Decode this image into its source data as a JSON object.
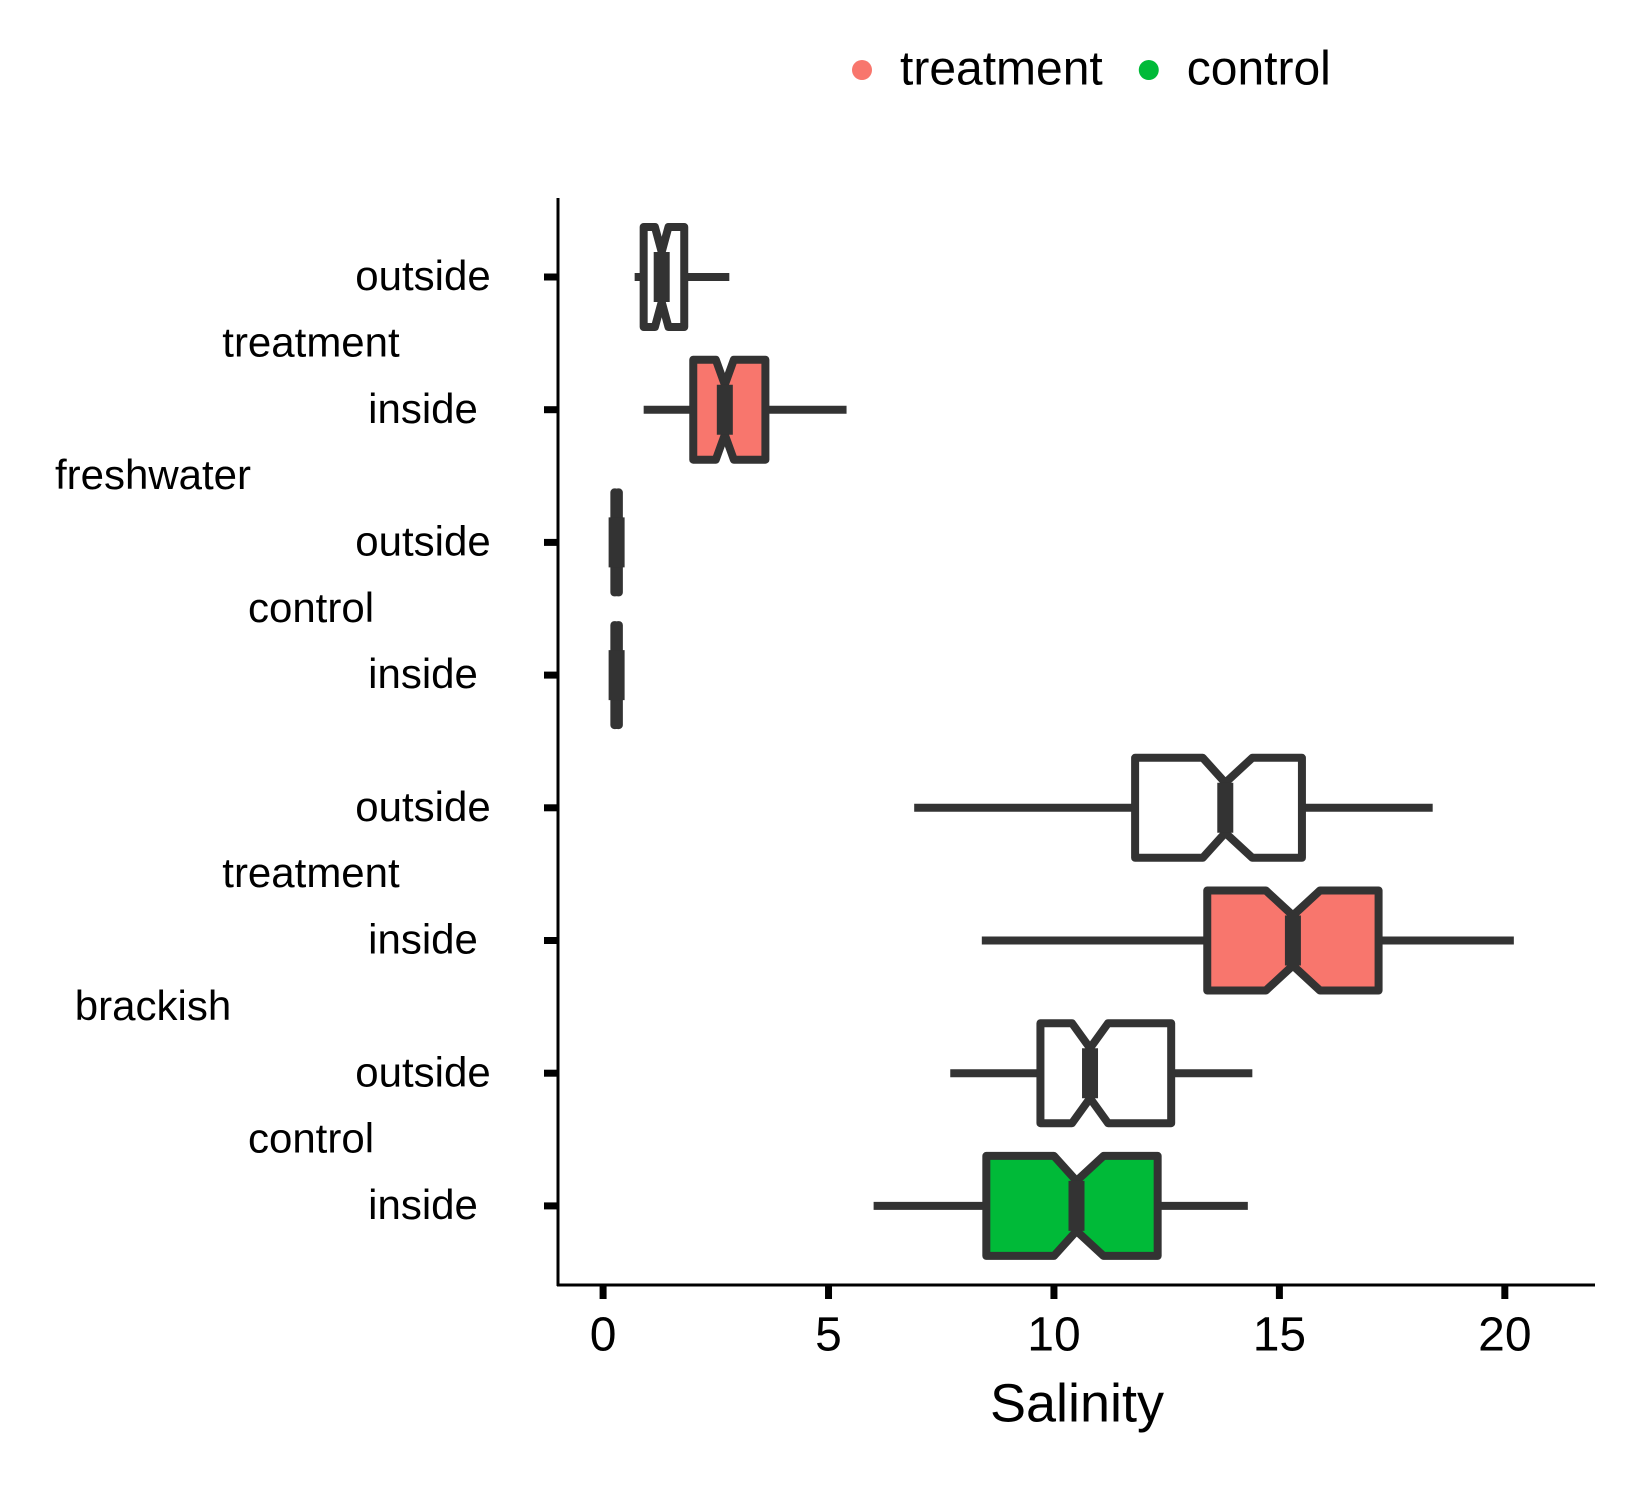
{
  "chart_data": {
    "type": "boxplot",
    "x_label": "Salinity",
    "xlim": [
      -1,
      22
    ],
    "xticks": [
      0,
      5,
      10,
      15,
      20
    ],
    "categories": [
      "outside",
      "inside",
      "outside",
      "inside",
      "outside",
      "inside",
      "outside",
      "inside"
    ],
    "subgroups": [
      "treatment",
      "control",
      "treatment",
      "control"
    ],
    "groups": [
      "freshwater",
      "brackish"
    ],
    "legend": [
      {
        "name": "treatment",
        "color": "#F8766D"
      },
      {
        "name": "control",
        "color": "#00BA38"
      }
    ],
    "boxes": [
      {
        "whisker_low": 0.7,
        "q1": 0.9,
        "notch_low": 1.15,
        "median": 1.3,
        "notch_high": 1.45,
        "q3": 1.8,
        "whisker_high": 2.8,
        "fill": "#ffffff"
      },
      {
        "whisker_low": 0.9,
        "q1": 2.0,
        "notch_low": 2.5,
        "median": 2.7,
        "notch_high": 2.9,
        "q3": 3.6,
        "whisker_high": 5.4,
        "fill": "#F8766D"
      },
      {
        "whisker_low": 0.2,
        "q1": 0.25,
        "notch_low": 0.27,
        "median": 0.3,
        "notch_high": 0.33,
        "q3": 0.35,
        "whisker_high": 0.35,
        "fill": "#ffffff"
      },
      {
        "whisker_low": 0.2,
        "q1": 0.25,
        "notch_low": 0.27,
        "median": 0.3,
        "notch_high": 0.33,
        "q3": 0.35,
        "whisker_high": 0.35,
        "fill": "#00BA38"
      },
      {
        "whisker_low": 6.9,
        "q1": 11.8,
        "notch_low": 13.3,
        "median": 13.8,
        "notch_high": 14.4,
        "q3": 15.5,
        "whisker_high": 18.4,
        "fill": "#ffffff"
      },
      {
        "whisker_low": 8.4,
        "q1": 13.4,
        "notch_low": 14.7,
        "median": 15.3,
        "notch_high": 15.9,
        "q3": 17.2,
        "whisker_high": 20.2,
        "fill": "#F8766D"
      },
      {
        "whisker_low": 7.7,
        "q1": 9.7,
        "notch_low": 10.4,
        "median": 10.8,
        "notch_high": 11.2,
        "q3": 12.6,
        "whisker_high": 14.4,
        "fill": "#ffffff"
      },
      {
        "whisker_low": 6.0,
        "q1": 8.5,
        "notch_low": 10.0,
        "median": 10.5,
        "notch_high": 11.1,
        "q3": 12.3,
        "whisker_high": 14.3,
        "fill": "#00BA38"
      }
    ]
  }
}
